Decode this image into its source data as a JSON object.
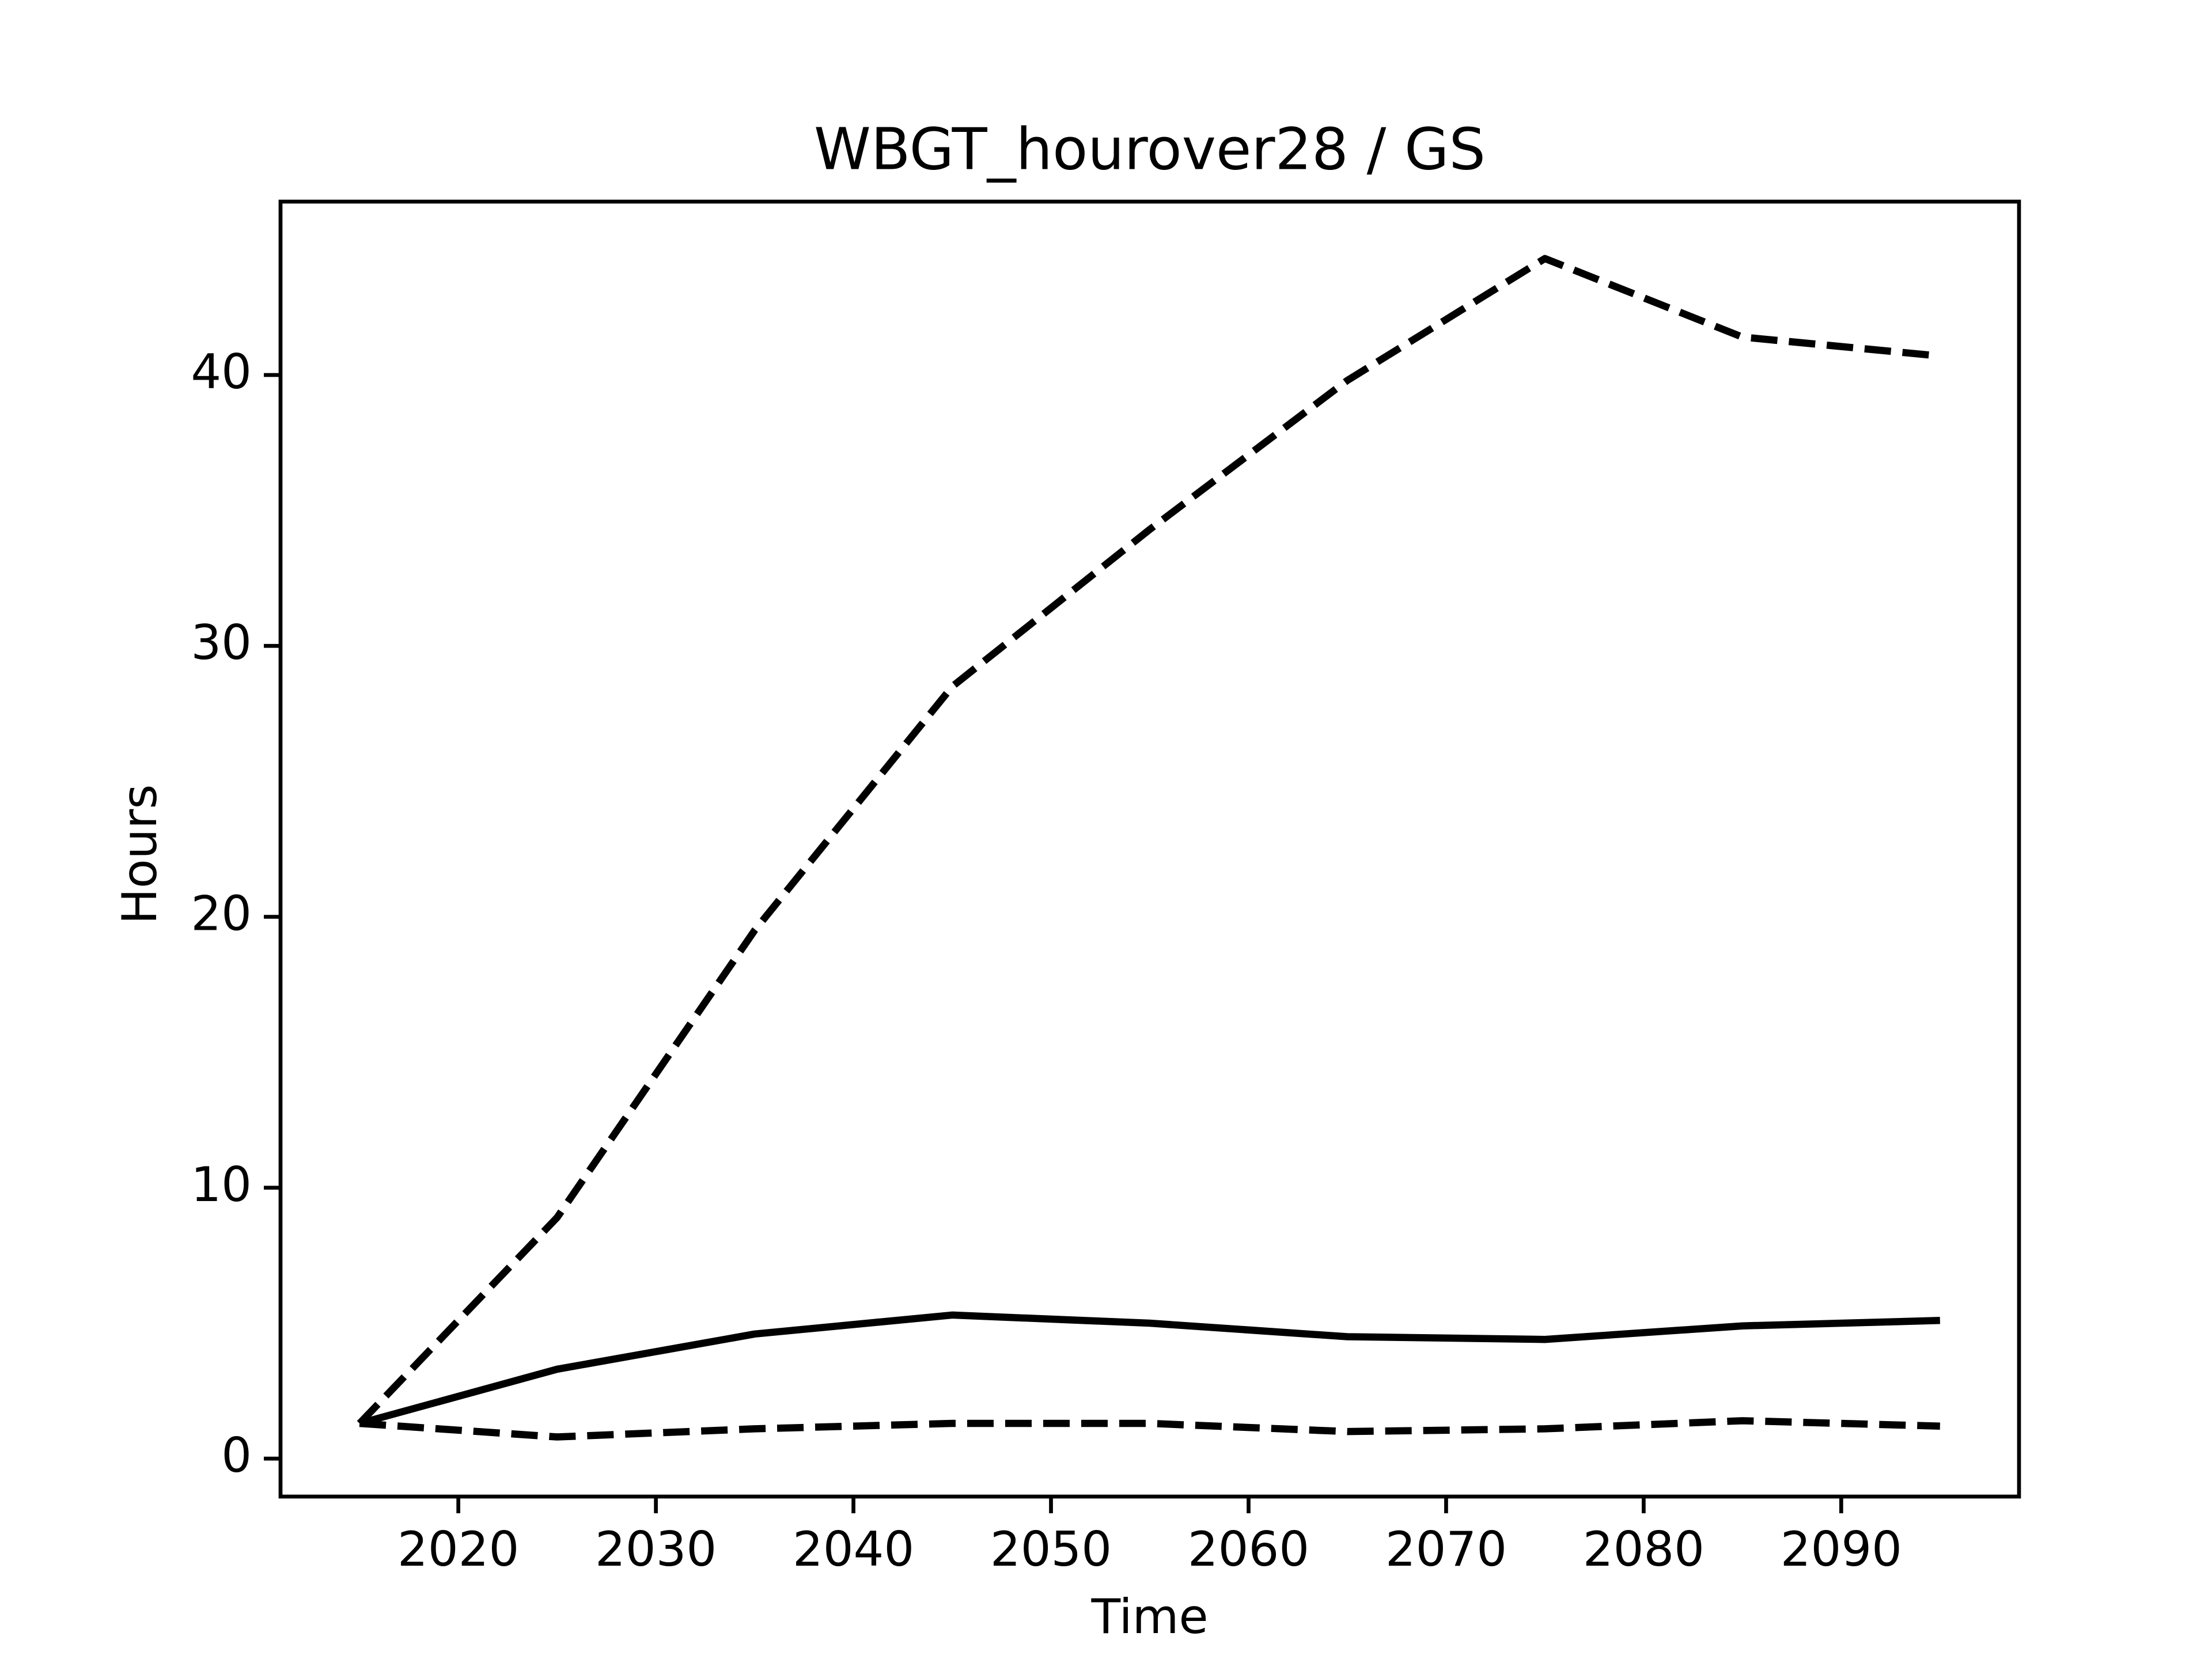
{
  "chart_data": {
    "type": "line",
    "title": "WBGT_hourover28 / GS",
    "x_label": "Time",
    "y_label": "Hours",
    "x": [
      2015,
      2025,
      2035,
      2045,
      2055,
      2065,
      2075,
      2085,
      2095
    ],
    "series": [
      {
        "color": "#000000",
        "linestyle": "dashed",
        "values": [
          1.3,
          8.9,
          19.5,
          28.5,
          34.3,
          39.8,
          44.3,
          41.4,
          40.7
        ]
      },
      {
        "color": "#000000",
        "linestyle": "solid",
        "values": [
          1.3,
          3.3,
          4.6,
          5.3,
          5.0,
          4.5,
          4.4,
          4.9,
          5.1
        ]
      },
      {
        "color": "#000000",
        "linestyle": "dashed",
        "values": [
          1.3,
          0.8,
          1.1,
          1.3,
          1.3,
          1.0,
          1.1,
          1.4,
          1.2
        ]
      }
    ],
    "xlim": [
      2011,
      2099
    ],
    "ylim": [
      -1.4,
      46.4
    ],
    "xticks": [
      2020,
      2030,
      2040,
      2050,
      2060,
      2070,
      2080,
      2090
    ],
    "yticks": [
      0,
      10,
      20,
      30,
      40
    ],
    "grid": false
  }
}
